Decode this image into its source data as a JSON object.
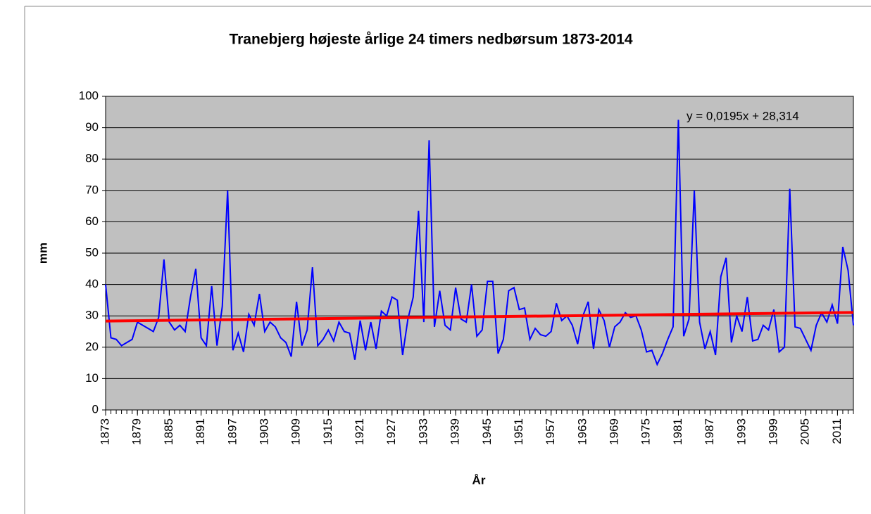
{
  "chart_data": {
    "type": "line",
    "title": "Tranebjerg højeste årlige 24 timers nedbørsum 1873-2014",
    "xlabel": "År",
    "ylabel": "mm",
    "x": [
      1873,
      1874,
      1875,
      1876,
      1877,
      1878,
      1879,
      1880,
      1881,
      1882,
      1883,
      1884,
      1885,
      1886,
      1887,
      1888,
      1889,
      1890,
      1891,
      1892,
      1893,
      1894,
      1895,
      1896,
      1897,
      1898,
      1899,
      1900,
      1901,
      1902,
      1903,
      1904,
      1905,
      1906,
      1907,
      1908,
      1909,
      1910,
      1911,
      1912,
      1913,
      1914,
      1915,
      1916,
      1917,
      1918,
      1919,
      1920,
      1921,
      1922,
      1923,
      1924,
      1925,
      1926,
      1927,
      1928,
      1929,
      1930,
      1931,
      1932,
      1933,
      1934,
      1935,
      1936,
      1937,
      1938,
      1939,
      1940,
      1941,
      1942,
      1943,
      1944,
      1945,
      1946,
      1947,
      1948,
      1949,
      1950,
      1951,
      1952,
      1953,
      1954,
      1955,
      1956,
      1957,
      1958,
      1959,
      1960,
      1961,
      1962,
      1963,
      1964,
      1965,
      1966,
      1967,
      1968,
      1969,
      1970,
      1971,
      1972,
      1973,
      1974,
      1975,
      1976,
      1977,
      1978,
      1979,
      1980,
      1981,
      1982,
      1983,
      1984,
      1985,
      1986,
      1987,
      1988,
      1989,
      1990,
      1991,
      1992,
      1993,
      1994,
      1995,
      1996,
      1997,
      1998,
      1999,
      2000,
      2001,
      2002,
      2003,
      2004,
      2005,
      2006,
      2007,
      2008,
      2009,
      2010,
      2011,
      2012,
      2013,
      2014
    ],
    "series": [
      {
        "color": "#0000ff",
        "values": [
          40,
          23,
          22.5,
          20.5,
          21.5,
          22.5,
          28,
          27,
          26,
          25,
          29.5,
          48,
          28,
          25.5,
          27,
          25,
          36,
          45,
          23,
          20.5,
          39.5,
          20.5,
          33,
          70,
          19,
          24.5,
          18.5,
          30.5,
          27,
          37,
          25,
          28,
          26.5,
          23,
          21.5,
          17,
          34.5,
          20.5,
          25.5,
          45.5,
          20.5,
          22.5,
          25.5,
          22,
          28,
          25,
          24.5,
          16,
          28.5,
          19,
          28,
          19.5,
          31.5,
          30,
          36,
          35,
          17.5,
          29,
          36,
          63.5,
          28,
          86,
          26.5,
          38,
          27,
          25.5,
          39,
          29,
          28,
          40,
          23.5,
          25.5,
          41,
          41,
          18,
          22.5,
          38,
          39,
          32,
          32.5,
          22.5,
          26,
          24,
          23.5,
          25,
          34,
          28.5,
          30,
          27,
          21,
          30,
          34.5,
          19.5,
          32,
          28.5,
          20,
          26.5,
          28,
          31,
          29.5,
          30,
          25.5,
          18.5,
          19,
          14.5,
          18,
          22.5,
          26.5,
          92.5,
          23.5,
          29,
          70,
          28,
          19.5,
          25,
          17.5,
          42.5,
          48.5,
          21.5,
          30,
          25,
          36,
          22,
          22.5,
          27,
          25.5,
          32,
          18.5,
          20,
          70.5,
          26.5,
          26,
          22.5,
          19,
          27,
          31,
          28,
          33.5,
          27.5,
          52,
          44.5,
          27
        ]
      }
    ],
    "trendline": {
      "label": "y = 0,0195x + 28,314",
      "slope": 0.0195,
      "intercept": 28.314,
      "color": "#ff0000"
    },
    "xlim": [
      1873,
      2014
    ],
    "xticks": [
      1873,
      1879,
      1885,
      1891,
      1897,
      1903,
      1909,
      1915,
      1921,
      1927,
      1933,
      1939,
      1945,
      1951,
      1957,
      1963,
      1969,
      1975,
      1981,
      1987,
      1993,
      1999,
      2005,
      2011
    ],
    "ylim": [
      0,
      100
    ],
    "yticks": [
      0,
      10,
      20,
      30,
      40,
      50,
      60,
      70,
      80,
      90,
      100
    ],
    "grid": true,
    "plot_background": "#c0c0c0"
  }
}
